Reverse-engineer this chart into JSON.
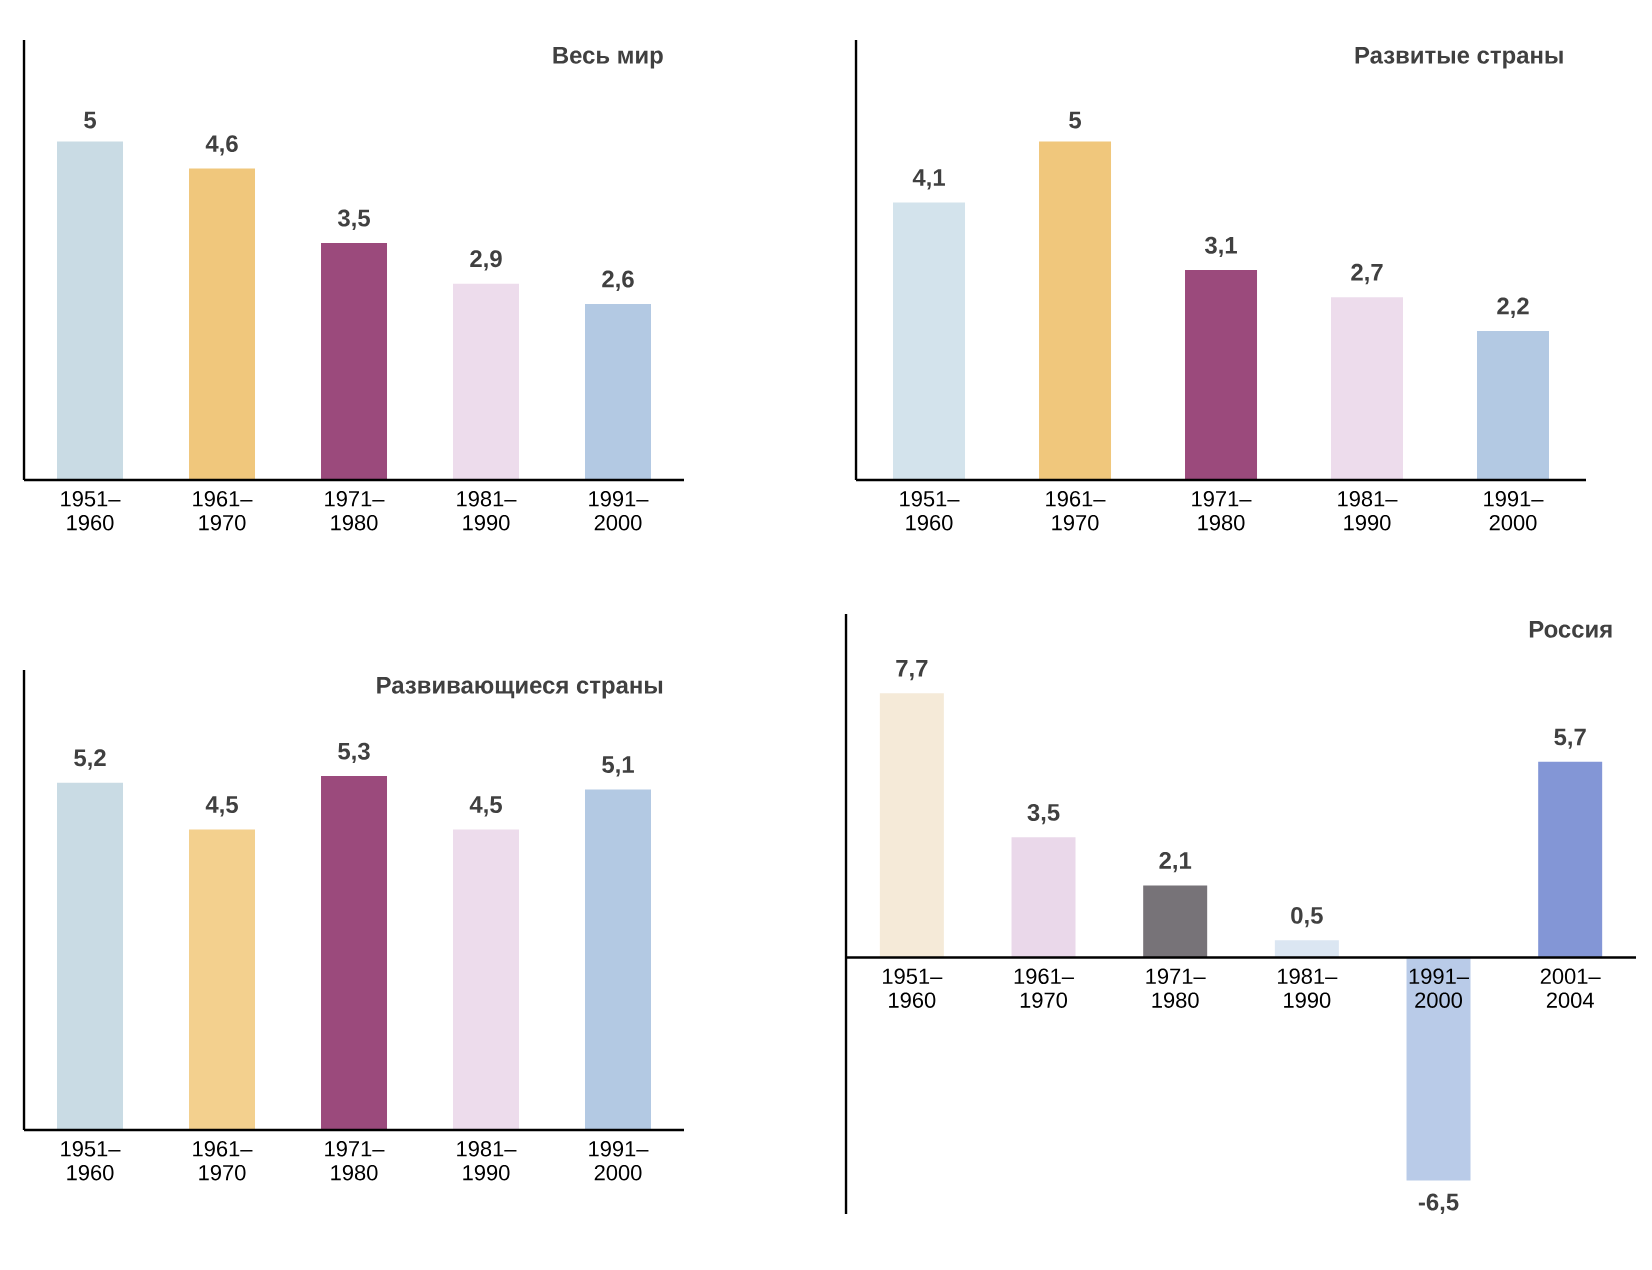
{
  "chart_data": [
    {
      "type": "bar",
      "title": "Весь мир",
      "categories": [
        "1951– 1960",
        "1961– 1970",
        "1971– 1980",
        "1981– 1990",
        "1991– 2000"
      ],
      "values": [
        5,
        4.6,
        3.5,
        2.9,
        2.6
      ],
      "value_labels": [
        "5",
        "4,6",
        "3,5",
        "2,9",
        "2,6"
      ],
      "colors": [
        "#c9dbe4",
        "#f0c77c",
        "#9b4a7c",
        "#eddcec",
        "#b3c9e3"
      ],
      "tick_labels": "x"
    },
    {
      "type": "bar",
      "title": "Развитые страны",
      "categories": [
        "1951– 1960",
        "1961– 1970",
        "1971– 1980",
        "1981– 1990",
        "1991– 2000"
      ],
      "values": [
        4.1,
        5,
        3.1,
        2.7,
        2.2
      ],
      "value_labels": [
        "4,1",
        "5",
        "3,1",
        "2,7",
        "2,2"
      ],
      "colors": [
        "#d3e3ec",
        "#f0c77c",
        "#9b4a7c",
        "#eddcec",
        "#b3c9e3"
      ],
      "tick_labels": "x"
    },
    {
      "type": "bar",
      "title": "Развивающиеся страны",
      "categories": [
        "1951– 1960",
        "1961– 1970",
        "1971– 1980",
        "1981– 1990",
        "1991– 2000"
      ],
      "values": [
        5.2,
        4.5,
        5.3,
        4.5,
        5.1
      ],
      "value_labels": [
        "5,2",
        "4,5",
        "5,3",
        "4,5",
        "5,1"
      ],
      "colors": [
        "#c9dbe4",
        "#f3d08e",
        "#9b4a7c",
        "#eddcec",
        "#b3c9e3"
      ],
      "tick_labels": "x"
    },
    {
      "type": "bar",
      "title": "Россия",
      "categories": [
        "1951– 1960",
        "1961– 1970",
        "1971– 1980",
        "1981– 1990",
        "1991– 2000",
        "2001– 2004"
      ],
      "values": [
        7.7,
        3.5,
        2.1,
        0.5,
        -6.5,
        5.7
      ],
      "value_labels": [
        "7,7",
        "3,5",
        "2,1",
        "0,5",
        "-6,5",
        "5,7"
      ],
      "colors": [
        "#f5ead8",
        "#ead8ea",
        "#777378",
        "#dbe6f2",
        "#b9cbe8",
        "#8396d6"
      ],
      "tick_labels": "x"
    }
  ]
}
